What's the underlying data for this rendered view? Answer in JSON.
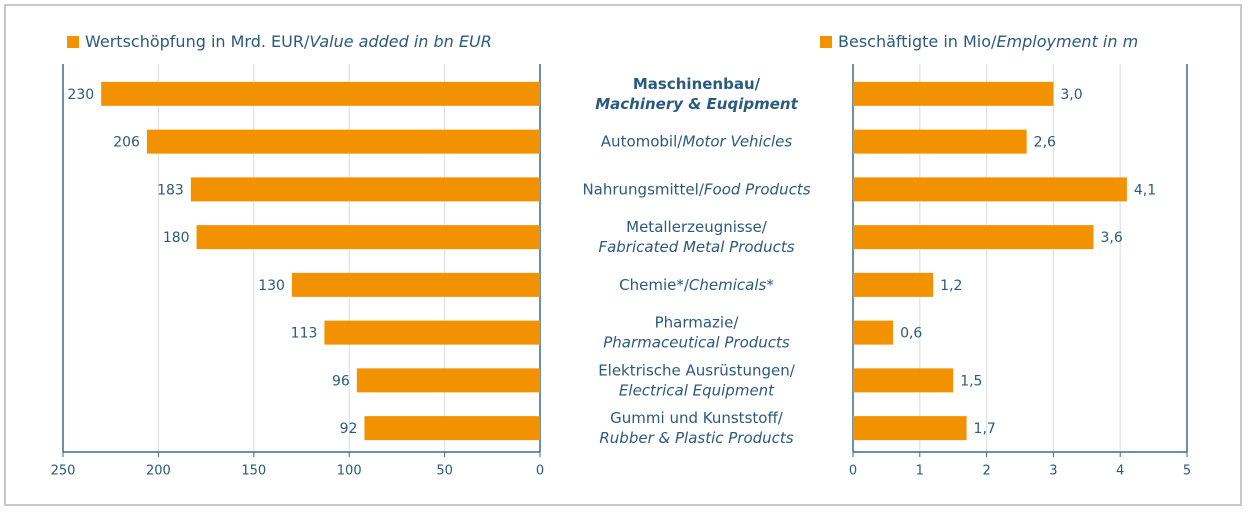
{
  "chart_data": [
    {
      "type": "bar",
      "orientation": "horizontal",
      "categories": [
        [
          "Maschinenbau/",
          "Machinery & Euqipment"
        ],
        [
          "Automobil/",
          "Motor Vehicles"
        ],
        [
          "Nahrungsmittel/",
          "Food Products"
        ],
        [
          "Metallerzeugnisse/",
          "Fabricated Metal Products"
        ],
        [
          "Chemie*/",
          "Chemicals*"
        ],
        [
          "Pharmazie/",
          "Pharmaceutical Products"
        ],
        [
          "Elektrische Ausrüstungen/",
          "Electrical Equipment"
        ],
        [
          "Gummi und Kunststoff/",
          "Rubber & Plastic Products"
        ]
      ],
      "series": [
        {
          "name": "Wertschöpfung in Mrd. EUR/",
          "name_en": "Value added in bn EUR",
          "color": "#f39200",
          "values": [
            230,
            206,
            183,
            180,
            130,
            113,
            96,
            92
          ]
        }
      ],
      "xlim": [
        250,
        0
      ],
      "xticks": [
        250,
        200,
        150,
        100,
        50,
        0
      ],
      "grid": true
    },
    {
      "type": "bar",
      "orientation": "horizontal",
      "series": [
        {
          "name": "Beschäftigte in Mio/",
          "name_en": "Employment in m",
          "color": "#f39200",
          "values": [
            3.0,
            2.6,
            4.1,
            3.6,
            1.2,
            0.6,
            1.5,
            1.7
          ],
          "value_labels": [
            "3,0",
            "2,6",
            "4,1",
            "3,6",
            "1,2",
            "0,6",
            "1,5",
            "1,7"
          ]
        }
      ],
      "xlim": [
        0,
        5
      ],
      "xticks": [
        0,
        1,
        2,
        3,
        4,
        5
      ],
      "grid": true
    }
  ]
}
